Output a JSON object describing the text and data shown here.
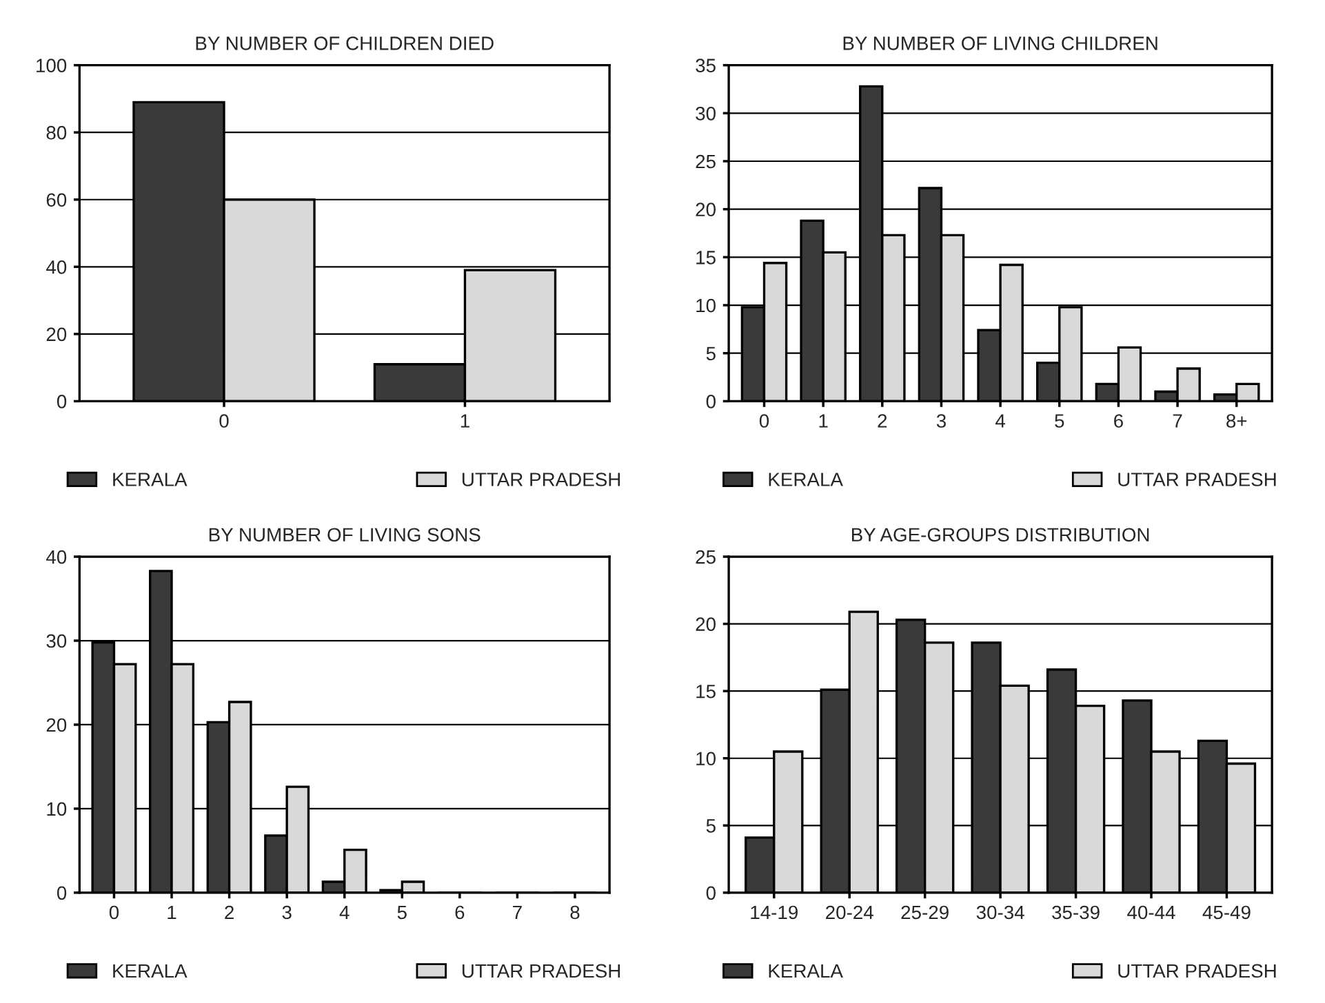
{
  "chart_data": [
    {
      "type": "bar",
      "title": "BY NUMBER OF CHILDREN DIED",
      "categories": [
        "0",
        "1"
      ],
      "ylim": [
        0,
        100
      ],
      "yticks": [
        0,
        20,
        40,
        60,
        80,
        100
      ],
      "grid": "y",
      "legend": "bottom",
      "series": [
        {
          "name": "KERALA",
          "color": "#3a3a3a",
          "values": [
            89,
            11
          ]
        },
        {
          "name": "UTTAR PRADESH",
          "color": "#d9d9d9",
          "values": [
            60,
            39
          ]
        }
      ]
    },
    {
      "type": "bar",
      "title": "BY NUMBER OF LIVING CHILDREN",
      "categories": [
        "0",
        "1",
        "2",
        "3",
        "4",
        "5",
        "6",
        "7",
        "8+"
      ],
      "ylim": [
        0,
        35
      ],
      "yticks": [
        0,
        5,
        10,
        15,
        20,
        25,
        30,
        35
      ],
      "grid": "y",
      "legend": "bottom",
      "series": [
        {
          "name": "KERALA",
          "color": "#3a3a3a",
          "values": [
            9.8,
            18.8,
            32.8,
            22.2,
            7.4,
            4.0,
            1.8,
            1.0,
            0.7
          ]
        },
        {
          "name": "UTTAR PRADESH",
          "color": "#d9d9d9",
          "values": [
            14.4,
            15.5,
            17.3,
            17.3,
            14.2,
            9.8,
            5.6,
            3.4,
            1.8
          ]
        }
      ]
    },
    {
      "type": "bar",
      "title": "BY NUMBER OF LIVING SONS",
      "categories": [
        "0",
        "1",
        "2",
        "3",
        "4",
        "5",
        "6",
        "7",
        "8"
      ],
      "ylim": [
        0,
        40
      ],
      "yticks": [
        0,
        10,
        20,
        30,
        40
      ],
      "grid": "y",
      "legend": "bottom",
      "series": [
        {
          "name": "KERALA",
          "color": "#3a3a3a",
          "values": [
            29.8,
            38.3,
            20.3,
            6.8,
            1.3,
            0.3,
            0,
            0,
            0
          ]
        },
        {
          "name": "UTTAR PRADESH",
          "color": "#d9d9d9",
          "values": [
            27.2,
            27.2,
            22.7,
            12.6,
            5.1,
            1.3,
            0,
            0,
            0
          ]
        }
      ]
    },
    {
      "type": "bar",
      "title": "BY AGE-GROUPS DISTRIBUTION",
      "categories": [
        "14-19",
        "20-24",
        "25-29",
        "30-34",
        "35-39",
        "40-44",
        "45-49"
      ],
      "ylim": [
        0,
        25
      ],
      "yticks": [
        0,
        5,
        10,
        15,
        20,
        25
      ],
      "grid": "y",
      "legend": "bottom",
      "series": [
        {
          "name": "KERALA",
          "color": "#3a3a3a",
          "values": [
            4.1,
            15.1,
            20.3,
            18.6,
            16.6,
            14.3,
            11.3
          ]
        },
        {
          "name": "UTTAR PRADESH",
          "color": "#d9d9d9",
          "values": [
            10.5,
            20.9,
            18.6,
            15.4,
            13.9,
            10.5,
            9.6
          ]
        }
      ]
    }
  ]
}
